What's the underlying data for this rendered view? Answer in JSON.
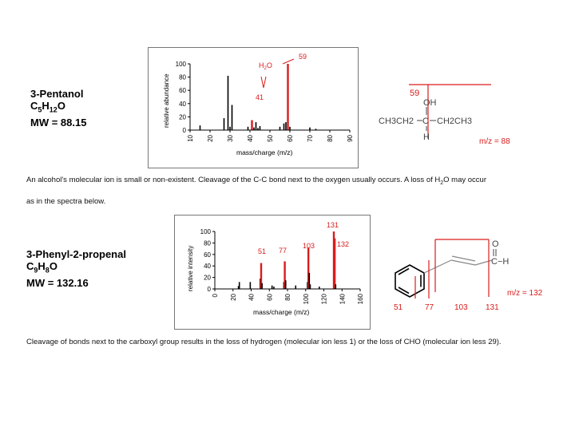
{
  "compound1": {
    "name": "3-Pentanol",
    "formula_main": "C",
    "formula_sub1": "5",
    "formula_mid": "H",
    "formula_sub2": "12",
    "formula_end": "O",
    "mw": "MW = 88.15"
  },
  "spectrum1": {
    "ylabel": "relative abundance",
    "xlabel": "mass/charge (m/z)",
    "yticks": [
      "100",
      "80",
      "60",
      "40",
      "20",
      "0"
    ],
    "xticks": [
      "10",
      "20",
      "30",
      "40",
      "50",
      "60",
      "70",
      "80",
      "90"
    ],
    "peak_labels": [
      "59",
      "41"
    ],
    "water_label": "H₂O",
    "water_label_parts": [
      "H",
      "2",
      "O"
    ]
  },
  "structure1": {
    "frag_label": "59",
    "oh": "OH",
    "chain_left": "CH3CH2",
    "center": "C",
    "chain_right": "CH2CH3",
    "h": "H",
    "mz": "m/z = 88"
  },
  "caption1": {
    "line1_a": "An alcohol's molecular ion is small or non-existent.  Cleavage of the C-C bond next to the oxygen usually occurs.  A loss of H",
    "line1_sub": "2",
    "line1_b": "O may occur",
    "line2": "as in the spectra below."
  },
  "compound2": {
    "name": "3-Phenyl-2-propenal",
    "formula_c": "C",
    "formula_sub1": "9",
    "formula_h": "H",
    "formula_sub2": "8",
    "formula_o": "O",
    "mw": "MW = 132.16"
  },
  "spectrum2": {
    "ylabel": "relative intensity",
    "xlabel": "mass/charge (m/z)",
    "yticks": [
      "100",
      "80",
      "60",
      "40",
      "20",
      "0"
    ],
    "xticks": [
      "0",
      "20",
      "40",
      "60",
      "80",
      "100",
      "120",
      "140",
      "160"
    ],
    "peak_labels": [
      "131",
      "103",
      "132",
      "51",
      "77"
    ]
  },
  "structure2": {
    "o": "O",
    "ch": "C−H",
    "mz": "m/z = 132",
    "frags": [
      "51",
      "77",
      "103",
      "131"
    ]
  },
  "caption2": {
    "text": "Cleavage of bonds next to the carboxyl group results in the loss of hydrogen (molecular ion less 1) or the loss of CHO (molecular ion less 29)."
  },
  "chart_data": [
    {
      "type": "bar",
      "ylabel": "relative abundance",
      "xlabel": "mass/charge (m/z)",
      "xlim": [
        10,
        90
      ],
      "ylim": [
        0,
        100
      ],
      "x": [
        15,
        27,
        29,
        30,
        31,
        39,
        41,
        42,
        43,
        44,
        45,
        55,
        57,
        58,
        59,
        60,
        70,
        73
      ],
      "values": [
        7,
        18,
        82,
        5,
        38,
        5,
        15,
        4,
        12,
        3,
        6,
        5,
        10,
        12,
        100,
        5,
        4,
        2
      ],
      "highlight": [
        41,
        59
      ],
      "annotations": [
        "59",
        "41",
        "H2O"
      ]
    },
    {
      "type": "bar",
      "ylabel": "relative intensity",
      "xlabel": "mass/charge (m/z)",
      "xlim": [
        0,
        160
      ],
      "ylim": [
        0,
        100
      ],
      "x": [
        26,
        27,
        39,
        50,
        51,
        52,
        63,
        65,
        76,
        77,
        78,
        89,
        102,
        103,
        104,
        105,
        115,
        131,
        132,
        133
      ],
      "values": [
        5,
        12,
        12,
        18,
        45,
        10,
        6,
        4,
        12,
        48,
        15,
        6,
        12,
        72,
        28,
        8,
        4,
        100,
        88,
        8
      ],
      "highlight": [
        51,
        77,
        103,
        131,
        132
      ],
      "annotations": [
        "131",
        "103",
        "132",
        "51",
        "77"
      ]
    }
  ]
}
